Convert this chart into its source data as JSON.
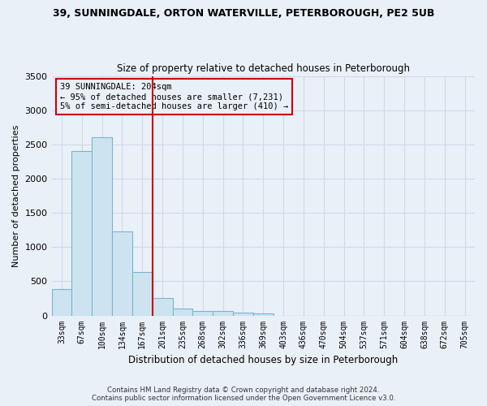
{
  "title_line1": "39, SUNNINGDALE, ORTON WATERVILLE, PETERBOROUGH, PE2 5UB",
  "title_line2": "Size of property relative to detached houses in Peterborough",
  "xlabel": "Distribution of detached houses by size in Peterborough",
  "ylabel": "Number of detached properties",
  "categories": [
    "33sqm",
    "67sqm",
    "100sqm",
    "134sqm",
    "167sqm",
    "201sqm",
    "235sqm",
    "268sqm",
    "302sqm",
    "336sqm",
    "369sqm",
    "403sqm",
    "436sqm",
    "470sqm",
    "504sqm",
    "537sqm",
    "571sqm",
    "604sqm",
    "638sqm",
    "672sqm",
    "705sqm"
  ],
  "values": [
    390,
    2400,
    2600,
    1230,
    640,
    255,
    100,
    60,
    60,
    45,
    35,
    0,
    0,
    0,
    0,
    0,
    0,
    0,
    0,
    0,
    0
  ],
  "bar_color": "#cde4f0",
  "bar_edge_color": "#7ab4cc",
  "vline_color": "#cc0000",
  "vline_pos": 4.5,
  "annotation_text": "39 SUNNINGDALE: 204sqm\n← 95% of detached houses are smaller (7,231)\n5% of semi-detached houses are larger (410) →",
  "annotation_box_color": "#cc0000",
  "ylim": [
    0,
    3500
  ],
  "yticks": [
    0,
    500,
    1000,
    1500,
    2000,
    2500,
    3000,
    3500
  ],
  "background_color": "#eaf0f8",
  "grid_color": "#d0d8e8",
  "footer": "Contains HM Land Registry data © Crown copyright and database right 2024.\nContains public sector information licensed under the Open Government Licence v3.0."
}
